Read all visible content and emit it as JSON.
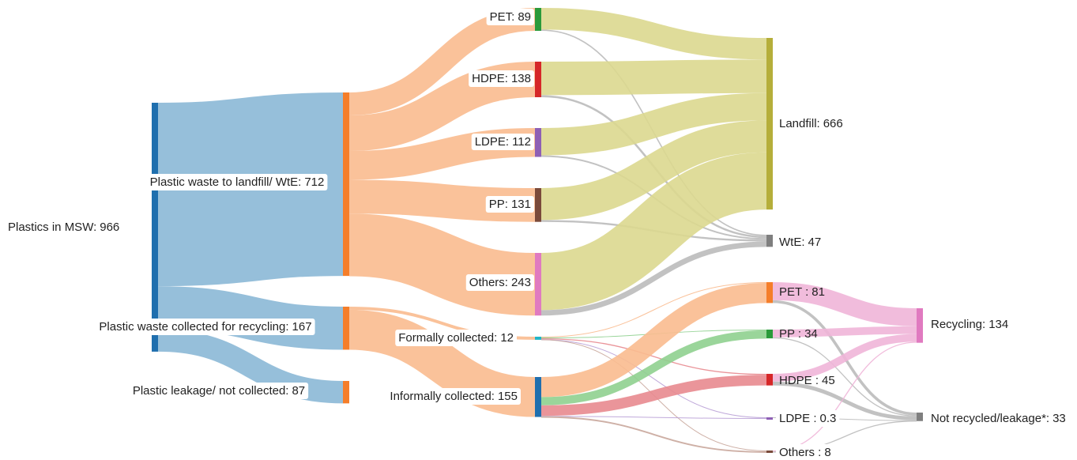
{
  "chart_data": {
    "type": "sankey",
    "nodes": [
      {
        "label": "Plastics in MSW:",
        "value": 966,
        "color": "#1f6fae"
      },
      {
        "label": "Plastic waste to landfill/ WtE:",
        "value": 712,
        "color": "#f57e2a"
      },
      {
        "label": "Plastic waste collected for recycling:",
        "value": 167,
        "color": "#f57e2a"
      },
      {
        "label": "Plastic leakage/ not collected:",
        "value": 87,
        "color": "#f57e2a"
      },
      {
        "label": "PET:",
        "value": 89,
        "color": "#2a9a3a"
      },
      {
        "label": "HDPE:",
        "value": 138,
        "color": "#d62728"
      },
      {
        "label": "LDPE:",
        "value": 112,
        "color": "#8e5fb5"
      },
      {
        "label": "PP:",
        "value": 131,
        "color": "#7a4a3a"
      },
      {
        "label": "Others:",
        "value": 243,
        "color": "#e07ac0"
      },
      {
        "label": "Formally collected:",
        "value": 12,
        "color": "#20b5c8"
      },
      {
        "label": "Informally collected:",
        "value": 155,
        "color": "#1f6fae"
      },
      {
        "label": "Landfill:",
        "value": 666,
        "color": "#b5ae3a"
      },
      {
        "label": "WtE:",
        "value": 47,
        "color": "#7f7f7f"
      },
      {
        "label": "PET :",
        "value": 81,
        "color": "#f57e2a"
      },
      {
        "label": "PP :",
        "value": 34,
        "color": "#2a9a3a"
      },
      {
        "label": "HDPE :",
        "value": 45,
        "color": "#d62728"
      },
      {
        "label": "LDPE :",
        "value": 0.3,
        "color": "#8e5fb5"
      },
      {
        "label": "Others :",
        "value": 8,
        "color": "#7a4a3a"
      },
      {
        "label": "Recycling:",
        "value": 134,
        "color": "#e07ac0"
      },
      {
        "label": "Not recycled/leakage*:",
        "value": 33,
        "color": "#7f7f7f"
      }
    ],
    "links": [
      {
        "source": 0,
        "target": 1,
        "value": 712,
        "color": "#8bb8d6"
      },
      {
        "source": 0,
        "target": 2,
        "value": 167,
        "color": "#8bb8d6"
      },
      {
        "source": 0,
        "target": 3,
        "value": 87,
        "color": "#8bb8d6"
      },
      {
        "source": 1,
        "target": 4,
        "value": 89,
        "color": "#f9bb8f"
      },
      {
        "source": 1,
        "target": 5,
        "value": 138,
        "color": "#f9bb8f"
      },
      {
        "source": 1,
        "target": 6,
        "value": 112,
        "color": "#f9bb8f"
      },
      {
        "source": 1,
        "target": 7,
        "value": 131,
        "color": "#f9bb8f"
      },
      {
        "source": 1,
        "target": 8,
        "value": 243,
        "color": "#f9bb8f"
      },
      {
        "source": 2,
        "target": 9,
        "value": 12,
        "color": "#f9bb8f"
      },
      {
        "source": 2,
        "target": 10,
        "value": 155,
        "color": "#f9bb8f"
      },
      {
        "source": 4,
        "target": 11,
        "value": 84,
        "color": "#dcd88f"
      },
      {
        "source": 4,
        "target": 12,
        "value": 5,
        "color": "#bbbbbb"
      },
      {
        "source": 5,
        "target": 11,
        "value": 130,
        "color": "#dcd88f"
      },
      {
        "source": 5,
        "target": 12,
        "value": 8,
        "color": "#bbbbbb"
      },
      {
        "source": 6,
        "target": 11,
        "value": 106,
        "color": "#dcd88f"
      },
      {
        "source": 6,
        "target": 12,
        "value": 6,
        "color": "#bbbbbb"
      },
      {
        "source": 7,
        "target": 11,
        "value": 124,
        "color": "#dcd88f"
      },
      {
        "source": 7,
        "target": 12,
        "value": 7,
        "color": "#bbbbbb"
      },
      {
        "source": 8,
        "target": 11,
        "value": 222,
        "color": "#dcd88f"
      },
      {
        "source": 8,
        "target": 12,
        "value": 21,
        "color": "#bbbbbb"
      },
      {
        "source": 9,
        "target": 13,
        "value": 3,
        "color": "#f9bb8f"
      },
      {
        "source": 9,
        "target": 14,
        "value": 2,
        "color": "#8fd08f"
      },
      {
        "source": 9,
        "target": 15,
        "value": 4,
        "color": "#e88a8f"
      },
      {
        "source": 9,
        "target": 16,
        "value": 0.1,
        "color": "#b9a0d6"
      },
      {
        "source": 9,
        "target": 17,
        "value": 2,
        "color": "#c9a79c"
      },
      {
        "source": 10,
        "target": 13,
        "value": 78,
        "color": "#f9bb8f"
      },
      {
        "source": 10,
        "target": 14,
        "value": 32,
        "color": "#8fd08f"
      },
      {
        "source": 10,
        "target": 15,
        "value": 41,
        "color": "#e88a8f"
      },
      {
        "source": 10,
        "target": 16,
        "value": 0.2,
        "color": "#b9a0d6"
      },
      {
        "source": 10,
        "target": 17,
        "value": 6,
        "color": "#c9a79c"
      },
      {
        "source": 13,
        "target": 18,
        "value": 70,
        "color": "#f0b5d8"
      },
      {
        "source": 13,
        "target": 19,
        "value": 11,
        "color": "#bbbbbb"
      },
      {
        "source": 14,
        "target": 18,
        "value": 30,
        "color": "#f0b5d8"
      },
      {
        "source": 14,
        "target": 19,
        "value": 4,
        "color": "#bbbbbb"
      },
      {
        "source": 15,
        "target": 18,
        "value": 30,
        "color": "#f0b5d8"
      },
      {
        "source": 15,
        "target": 19,
        "value": 15,
        "color": "#bbbbbb"
      },
      {
        "source": 16,
        "target": 19,
        "value": 0.3,
        "color": "#bbbbbb"
      },
      {
        "source": 17,
        "target": 18,
        "value": 4,
        "color": "#f0b5d8"
      },
      {
        "source": 17,
        "target": 19,
        "value": 4,
        "color": "#bbbbbb"
      }
    ]
  }
}
